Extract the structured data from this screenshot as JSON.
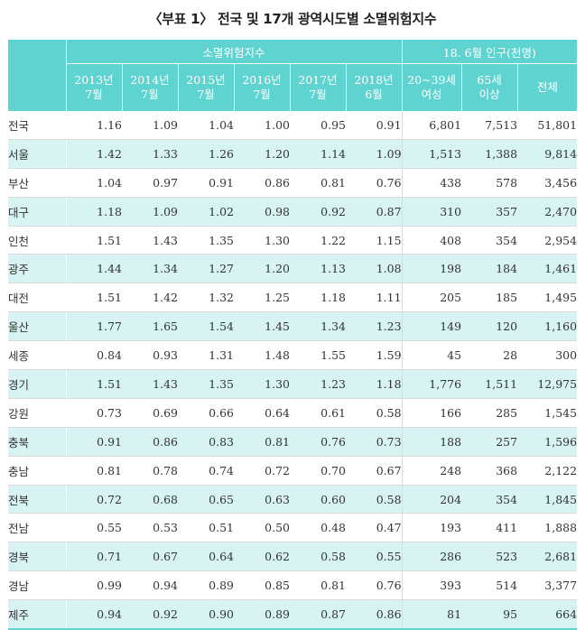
{
  "title": "〈부표 1〉 전국 및 17개 광역시도별 소멸위험지수",
  "header": {
    "group1": "소멸위험지수",
    "group2": "18. 6월 인구(천명)",
    "cols": [
      {
        "l1": "2013년",
        "l2": "7월"
      },
      {
        "l1": "2014년",
        "l2": "7월"
      },
      {
        "l1": "2015년",
        "l2": "7월"
      },
      {
        "l1": "2016년",
        "l2": "7월"
      },
      {
        "l1": "2017년",
        "l2": "7월"
      },
      {
        "l1": "2018년",
        "l2": "6월"
      },
      {
        "l1": "20~39세",
        "l2": "여성"
      },
      {
        "l1": "65세",
        "l2": "이상"
      },
      {
        "l1": "전체",
        "l2": ""
      }
    ]
  },
  "rows": [
    {
      "name": "전국",
      "v": [
        "1.16",
        "1.09",
        "1.04",
        "1.00",
        "0.95",
        "0.91",
        "6,801",
        "7,513",
        "51,801"
      ]
    },
    {
      "name": "서울",
      "v": [
        "1.42",
        "1.33",
        "1.26",
        "1.20",
        "1.14",
        "1.09",
        "1,513",
        "1,388",
        "9,814"
      ]
    },
    {
      "name": "부산",
      "v": [
        "1.04",
        "0.97",
        "0.91",
        "0.86",
        "0.81",
        "0.76",
        "438",
        "578",
        "3,456"
      ]
    },
    {
      "name": "대구",
      "v": [
        "1.18",
        "1.09",
        "1.02",
        "0.98",
        "0.92",
        "0.87",
        "310",
        "357",
        "2,470"
      ]
    },
    {
      "name": "인천",
      "v": [
        "1.51",
        "1.43",
        "1.35",
        "1.30",
        "1.22",
        "1.15",
        "408",
        "354",
        "2,954"
      ]
    },
    {
      "name": "광주",
      "v": [
        "1.44",
        "1.34",
        "1.27",
        "1.20",
        "1.13",
        "1.08",
        "198",
        "184",
        "1,461"
      ]
    },
    {
      "name": "대전",
      "v": [
        "1.51",
        "1.42",
        "1.32",
        "1.25",
        "1.18",
        "1.11",
        "205",
        "185",
        "1,495"
      ]
    },
    {
      "name": "울산",
      "v": [
        "1.77",
        "1.65",
        "1.54",
        "1.45",
        "1.34",
        "1.23",
        "149",
        "120",
        "1,160"
      ]
    },
    {
      "name": "세종",
      "v": [
        "0.84",
        "0.93",
        "1.31",
        "1.48",
        "1.55",
        "1.59",
        "45",
        "28",
        "300"
      ]
    },
    {
      "name": "경기",
      "v": [
        "1.51",
        "1.43",
        "1.35",
        "1.30",
        "1.23",
        "1.18",
        "1,776",
        "1,511",
        "12,975"
      ]
    },
    {
      "name": "강원",
      "v": [
        "0.73",
        "0.69",
        "0.66",
        "0.64",
        "0.61",
        "0.58",
        "166",
        "285",
        "1,545"
      ]
    },
    {
      "name": "충북",
      "v": [
        "0.91",
        "0.86",
        "0.83",
        "0.81",
        "0.76",
        "0.73",
        "188",
        "257",
        "1,596"
      ]
    },
    {
      "name": "충남",
      "v": [
        "0.81",
        "0.78",
        "0.74",
        "0.72",
        "0.70",
        "0.67",
        "248",
        "368",
        "2,122"
      ]
    },
    {
      "name": "전북",
      "v": [
        "0.72",
        "0.68",
        "0.65",
        "0.63",
        "0.60",
        "0.58",
        "204",
        "354",
        "1,845"
      ]
    },
    {
      "name": "전남",
      "v": [
        "0.55",
        "0.53",
        "0.51",
        "0.50",
        "0.48",
        "0.47",
        "193",
        "411",
        "1,888"
      ]
    },
    {
      "name": "경북",
      "v": [
        "0.71",
        "0.67",
        "0.64",
        "0.62",
        "0.58",
        "0.55",
        "286",
        "523",
        "2,681"
      ]
    },
    {
      "name": "경남",
      "v": [
        "0.99",
        "0.94",
        "0.89",
        "0.85",
        "0.81",
        "0.76",
        "393",
        "514",
        "3,377"
      ]
    },
    {
      "name": "제주",
      "v": [
        "0.94",
        "0.92",
        "0.90",
        "0.89",
        "0.87",
        "0.86",
        "81",
        "95",
        "664"
      ]
    }
  ]
}
